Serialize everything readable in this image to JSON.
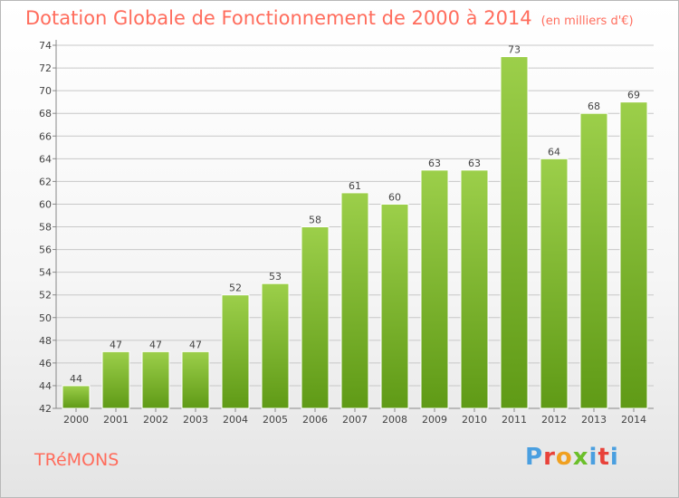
{
  "header": {
    "title": "Dotation Globale de Fonctionnement de 2000 à 2014",
    "unit": "(en milliers d'€)"
  },
  "footer": {
    "commune": "TRéMONS",
    "logo": "Proxiti"
  },
  "colors": {
    "title": "#ff6c5c",
    "bar_top": "#9ccf4a",
    "bar_bottom": "#5f9a16",
    "grid": "#c8c8c8"
  },
  "chart_data": {
    "type": "bar",
    "categories": [
      "2000",
      "2001",
      "2002",
      "2003",
      "2004",
      "2005",
      "2006",
      "2007",
      "2008",
      "2009",
      "2010",
      "2011",
      "2012",
      "2013",
      "2014"
    ],
    "values": [
      44,
      47,
      47,
      47,
      52,
      53,
      58,
      61,
      60,
      63,
      63,
      73,
      64,
      68,
      69
    ],
    "data_labels": [
      "44",
      "47",
      "47",
      "47",
      "52",
      "53",
      "58",
      "61",
      "60",
      "63",
      "63",
      "73",
      "64",
      "68",
      "69"
    ],
    "yticks": [
      "42",
      "44",
      "46",
      "48",
      "50",
      "52",
      "54",
      "56",
      "58",
      "60",
      "62",
      "64",
      "66",
      "68",
      "70",
      "72",
      "74"
    ],
    "ylim": [
      42,
      74
    ],
    "grid": true,
    "legend": "none"
  }
}
